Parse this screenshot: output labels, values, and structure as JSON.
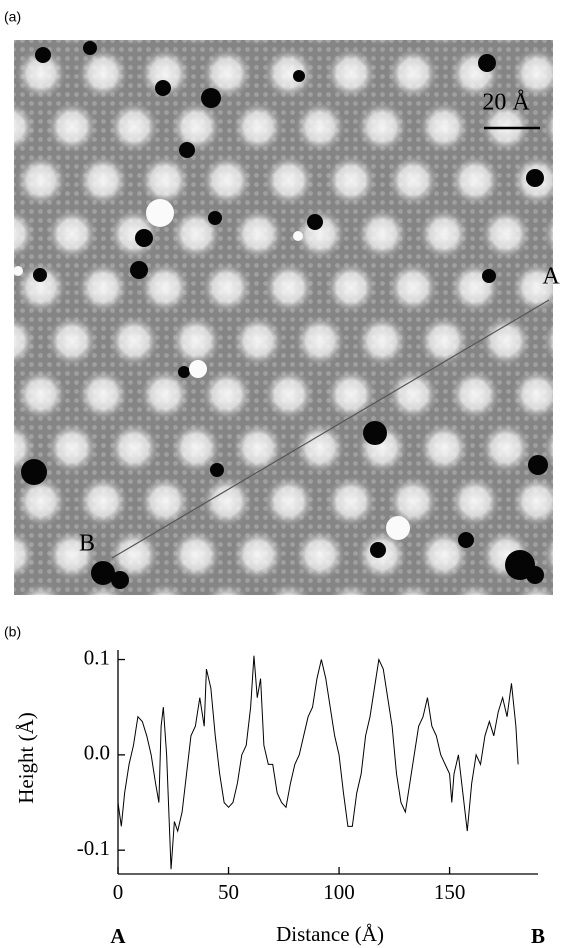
{
  "image_panel": {
    "label": "(a)",
    "scale_bar": "20 Å",
    "point_a": "A",
    "point_b": "B"
  },
  "chart_data": {
    "type": "line",
    "panel_label": "(b)",
    "x_axis_label": "Distance (Å)",
    "y_axis_label": "Height (Å)",
    "x_start_label": "A",
    "x_end_label": "B",
    "color": "#000000",
    "x": [
      0,
      1.5,
      3,
      5,
      7,
      9,
      11,
      13,
      15,
      17,
      18.5,
      19.5,
      20.5,
      22,
      23,
      24,
      25.5,
      27,
      29,
      31,
      33,
      35,
      37,
      39,
      40,
      42,
      44,
      46,
      48,
      50,
      52,
      54,
      56,
      58,
      60,
      61.5,
      63,
      64.5,
      66,
      68,
      70,
      72,
      74,
      76,
      78,
      80,
      82,
      84,
      86,
      88,
      90,
      92,
      94,
      96,
      98,
      100,
      102,
      104,
      106,
      108,
      110,
      112,
      114,
      116,
      118,
      120,
      122,
      124,
      126,
      128,
      130,
      132,
      134,
      136,
      138,
      140,
      142,
      144,
      146,
      148,
      150,
      151,
      152,
      154,
      156,
      158,
      160,
      162,
      164,
      166,
      168,
      170,
      172,
      174,
      176,
      178,
      180,
      181
    ],
    "values": [
      -0.05,
      -0.075,
      -0.04,
      -0.01,
      0.01,
      0.04,
      0.035,
      0.02,
      0,
      -0.03,
      -0.05,
      0.03,
      0.05,
      0,
      -0.06,
      -0.12,
      -0.07,
      -0.08,
      -0.06,
      -0.02,
      0.02,
      0.03,
      0.06,
      0.03,
      0.09,
      0.07,
      0.02,
      -0.02,
      -0.05,
      -0.055,
      -0.05,
      -0.03,
      0,
      0.01,
      0.05,
      0.104,
      0.06,
      0.08,
      0.01,
      -0.01,
      -0.01,
      -0.04,
      -0.05,
      -0.055,
      -0.03,
      -0.01,
      0,
      0.02,
      0.04,
      0.05,
      0.08,
      0.1,
      0.08,
      0.05,
      0.02,
      0,
      -0.04,
      -0.075,
      -0.075,
      -0.04,
      -0.02,
      0.02,
      0.04,
      0.07,
      0.1,
      0.09,
      0.06,
      0.03,
      -0.02,
      -0.05,
      -0.06,
      -0.03,
      0,
      0.03,
      0.04,
      0.06,
      0.03,
      0.02,
      0,
      -0.01,
      -0.02,
      -0.05,
      -0.02,
      0,
      -0.04,
      -0.08,
      -0.03,
      0,
      -0.01,
      0.02,
      0.035,
      0.02,
      0.045,
      0.06,
      0.04,
      0.075,
      0.03,
      -0.01
    ],
    "xlim": [
      0,
      190
    ],
    "xticks": [
      0,
      50,
      100,
      150
    ],
    "ylim": [
      -0.125,
      0.11
    ],
    "yticks": [
      -0.1,
      {
        "value": 0,
        "label": "0.0"
      },
      0.1
    ]
  }
}
